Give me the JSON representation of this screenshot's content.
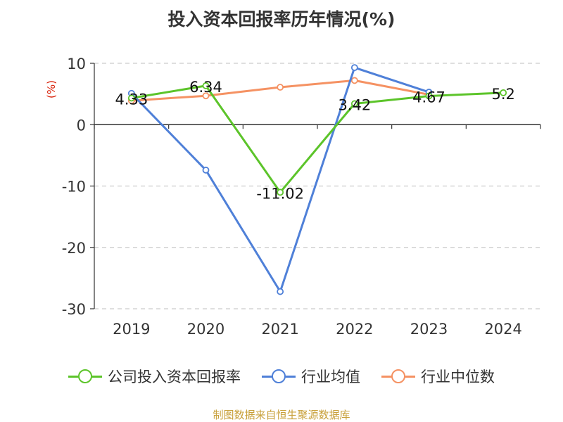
{
  "chart_data": {
    "type": "line",
    "title": "投入资本回报率历年情况(%)",
    "ylabel": "(%)",
    "xlabel": "",
    "categories": [
      "2019",
      "2020",
      "2021",
      "2022",
      "2023",
      "2024"
    ],
    "ylim": [
      -30,
      10
    ],
    "yticks": [
      10,
      0,
      -10,
      -20,
      -30
    ],
    "grid": true,
    "legend_position": "bottom",
    "series": [
      {
        "name": "公司投入资本回报率",
        "color": "#5cc42a",
        "values": [
          4.33,
          6.34,
          -11.02,
          3.42,
          4.67,
          5.2
        ],
        "labels": [
          "4.33",
          "6.34",
          "-11.02",
          "3.42",
          "4.67",
          "5.2"
        ]
      },
      {
        "name": "行业均值",
        "color": "#4f80d8",
        "values": [
          5.1,
          -7.4,
          -27.2,
          9.3,
          5.3,
          null
        ]
      },
      {
        "name": "行业中位数",
        "color": "#f59263",
        "values": [
          3.9,
          4.7,
          6.1,
          7.2,
          4.9,
          null
        ]
      }
    ]
  },
  "footer": {
    "source": "制图数据来自恒生聚源数据库"
  }
}
